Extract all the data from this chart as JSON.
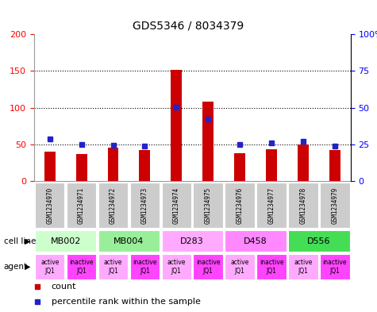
{
  "title": "GDS5346 / 8034379",
  "samples": [
    "GSM1234970",
    "GSM1234971",
    "GSM1234972",
    "GSM1234973",
    "GSM1234974",
    "GSM1234975",
    "GSM1234976",
    "GSM1234977",
    "GSM1234978",
    "GSM1234979"
  ],
  "counts": [
    40,
    37,
    45,
    42,
    152,
    108,
    38,
    43,
    50,
    42
  ],
  "percentiles": [
    57,
    50,
    49,
    48,
    101,
    84,
    50,
    52,
    54,
    48
  ],
  "cell_lines": [
    {
      "label": "MB002",
      "start": 0,
      "end": 2,
      "color": "#ccffcc"
    },
    {
      "label": "MB004",
      "start": 2,
      "end": 4,
      "color": "#99ee99"
    },
    {
      "label": "D283",
      "start": 4,
      "end": 6,
      "color": "#ffaaff"
    },
    {
      "label": "D458",
      "start": 6,
      "end": 8,
      "color": "#ff88ff"
    },
    {
      "label": "D556",
      "start": 8,
      "end": 10,
      "color": "#44dd55"
    }
  ],
  "agents": [
    "active\nJQ1",
    "inactive\nJQ1",
    "active\nJQ1",
    "inactive\nJQ1",
    "active\nJQ1",
    "inactive\nJQ1",
    "active\nJQ1",
    "inactive\nJQ1",
    "active\nJQ1",
    "inactive\nJQ1"
  ],
  "agent_light_color": "#ffaaff",
  "agent_dark_color": "#ff44ff",
  "bar_color": "#cc0000",
  "dot_color": "#2222cc",
  "left_ylim": [
    0,
    200
  ],
  "right_ylim": [
    0,
    100
  ],
  "left_yticks": [
    0,
    50,
    100,
    150,
    200
  ],
  "left_yticklabels": [
    "0",
    "50",
    "100",
    "150",
    "200"
  ],
  "right_yticks": [
    0,
    25,
    50,
    75,
    100
  ],
  "right_yticklabels": [
    "0",
    "25",
    "50",
    "75",
    "100%"
  ],
  "sample_bg_color": "#cccccc",
  "fig_bg": "#ffffff"
}
